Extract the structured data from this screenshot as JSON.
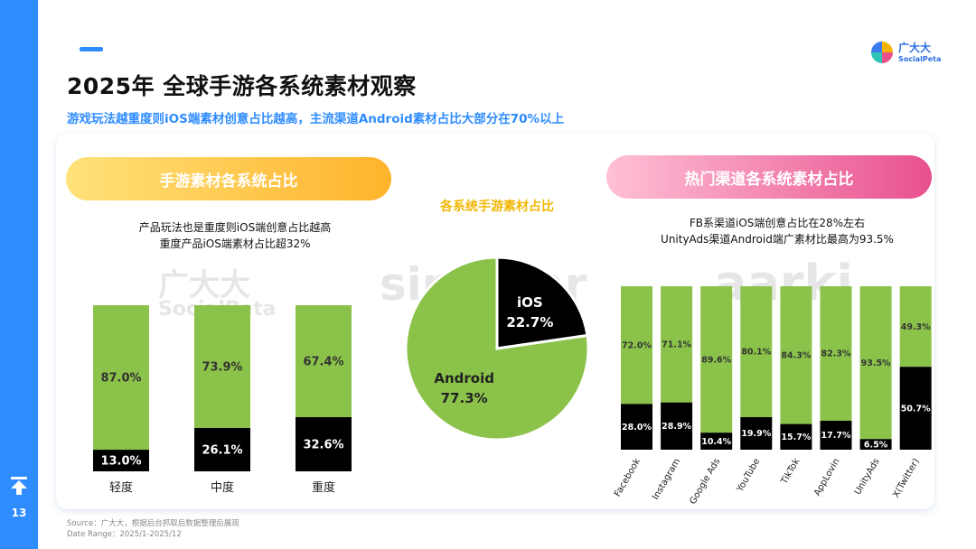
{
  "page": {
    "number": "13"
  },
  "header": {
    "title": "2025年 全球手游各系统素材观察",
    "subtitle": "游戏玩法越重度则iOS端素材创意占比越高，主流渠道Android素材占比大部分在70%以上"
  },
  "brand": {
    "name": "广大大",
    "sub": "SocialPeta"
  },
  "watermarks": [
    "广大大",
    "SocialPeta",
    "singular",
    "aarki"
  ],
  "colors": {
    "android": "#8bc34a",
    "ios": "#000000",
    "accent": "#2f8cff"
  },
  "left_panel": {
    "title": "手游素材各系统占比",
    "note_lines": [
      "产品玩法也是重度则iOS端创意占比越高",
      "重度产品iOS端素材占比超32%"
    ]
  },
  "center_panel": {
    "title": "各系统手游素材占比"
  },
  "right_panel": {
    "title": "热门渠道各系统素材占比",
    "note_lines": [
      "FB系渠道iOS端创意占比在28%左右",
      "UnityAds渠道Android端广素材比最高为93.5%"
    ]
  },
  "footer": {
    "source": "Source：广大大，根据后台抓取后数据整理后展现",
    "date_range": "Date Range：2025/1-2025/12"
  },
  "chart_data": [
    {
      "type": "bar",
      "stacked": true,
      "normalized": true,
      "categories": [
        "轻度",
        "中度",
        "重度"
      ],
      "series": [
        {
          "name": "iOS",
          "values": [
            13.0,
            26.1,
            32.6
          ]
        },
        {
          "name": "Android",
          "values": [
            87.0,
            73.9,
            67.4
          ]
        }
      ],
      "ylim": [
        0,
        100
      ]
    },
    {
      "type": "pie",
      "labels": [
        "iOS",
        "Android"
      ],
      "values": [
        22.7,
        77.3
      ]
    },
    {
      "type": "bar",
      "stacked": true,
      "normalized": true,
      "categories": [
        "Facebook",
        "Instagram",
        "Google Ads",
        "YouTube",
        "TikTok",
        "AppLovin",
        "UnityAds",
        "X(Twitter)"
      ],
      "series": [
        {
          "name": "iOS",
          "values": [
            28.0,
            28.9,
            10.4,
            19.9,
            15.7,
            17.7,
            6.5,
            50.7
          ]
        },
        {
          "name": "Android",
          "values": [
            72.0,
            71.1,
            89.6,
            80.1,
            84.3,
            82.3,
            93.5,
            49.3
          ]
        }
      ],
      "ylim": [
        0,
        100
      ]
    }
  ]
}
